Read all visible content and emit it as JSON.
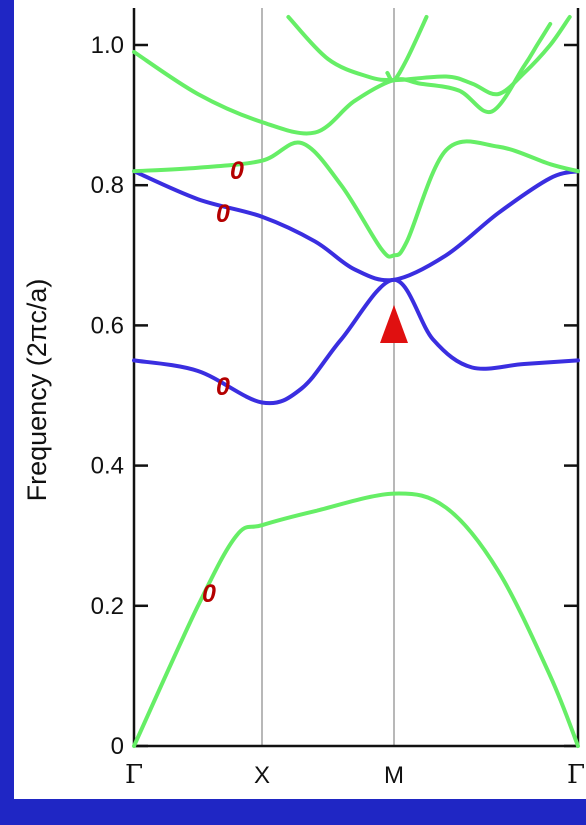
{
  "chart_data": {
    "type": "line",
    "ylabel": "Frequency  (2πc/a)",
    "yticks": [
      "0",
      "0.2",
      "0.4",
      "0.6",
      "0.8",
      "1.0"
    ],
    "ylim": [
      0,
      1.05
    ],
    "xticks": [
      "Γ",
      "X",
      "M",
      "Γ"
    ],
    "k_path": [
      0,
      1,
      2,
      3.414
    ],
    "grid": "vertical lines at X and M",
    "zero_labels": [
      "0",
      "0",
      "0",
      "0"
    ],
    "marker": "up-arrow at M",
    "colors": {
      "background": "#1f26c4",
      "plot": "#ffffff",
      "green_band": "#66ee66",
      "blue_band": "#3a2ee0",
      "label_red": "#b40000",
      "gridline": "#b8b8b8"
    },
    "series": [
      {
        "color": "green",
        "x": [
          0,
          0.5,
          0.8,
          1,
          1.4,
          2,
          2.4,
          2.8,
          3.2,
          3.414
        ],
        "y": [
          0,
          0.2,
          0.3,
          0.315,
          0.335,
          0.36,
          0.34,
          0.25,
          0.1,
          0
        ]
      },
      {
        "color": "blue",
        "x": [
          0,
          0.5,
          1,
          1.3,
          1.6,
          2,
          2.3,
          2.6,
          3,
          3.414
        ],
        "y": [
          0.55,
          0.535,
          0.49,
          0.51,
          0.58,
          0.665,
          0.58,
          0.54,
          0.545,
          0.55
        ]
      },
      {
        "color": "blue",
        "x": [
          0,
          0.5,
          1,
          1.4,
          1.7,
          2,
          2.4,
          2.8,
          3.2,
          3.414
        ],
        "y": [
          0.82,
          0.78,
          0.755,
          0.72,
          0.68,
          0.665,
          0.7,
          0.76,
          0.81,
          0.82
        ]
      },
      {
        "color": "green",
        "x": [
          0,
          0.5,
          1,
          1.3,
          1.6,
          1.9,
          2,
          2.1,
          2.4,
          2.8,
          3.2,
          3.414
        ],
        "y": [
          0.82,
          0.825,
          0.835,
          0.86,
          0.8,
          0.71,
          0.7,
          0.72,
          0.85,
          0.855,
          0.83,
          0.82
        ]
      },
      {
        "color": "green",
        "x": [
          0,
          0.5,
          1,
          1.4,
          1.7,
          2,
          2.2,
          2.5,
          2.75,
          3,
          3.1,
          3.2
        ],
        "y": [
          0.99,
          0.93,
          0.89,
          0.875,
          0.92,
          0.95,
          0.945,
          0.935,
          0.905,
          0.97,
          1.0,
          1.03
        ]
      },
      {
        "color": "green",
        "x": [
          1.2,
          1.5,
          1.8,
          2,
          2.4,
          2.6,
          2.8,
          3,
          3.2,
          3.35
        ],
        "y": [
          1.04,
          0.98,
          0.955,
          0.95,
          0.955,
          0.945,
          0.93,
          0.96,
          1.0,
          1.04
        ]
      },
      {
        "color": "green",
        "x": [
          1.95,
          2,
          2.1,
          2.25
        ],
        "y": [
          0.96,
          0.95,
          0.98,
          1.04
        ]
      }
    ]
  }
}
